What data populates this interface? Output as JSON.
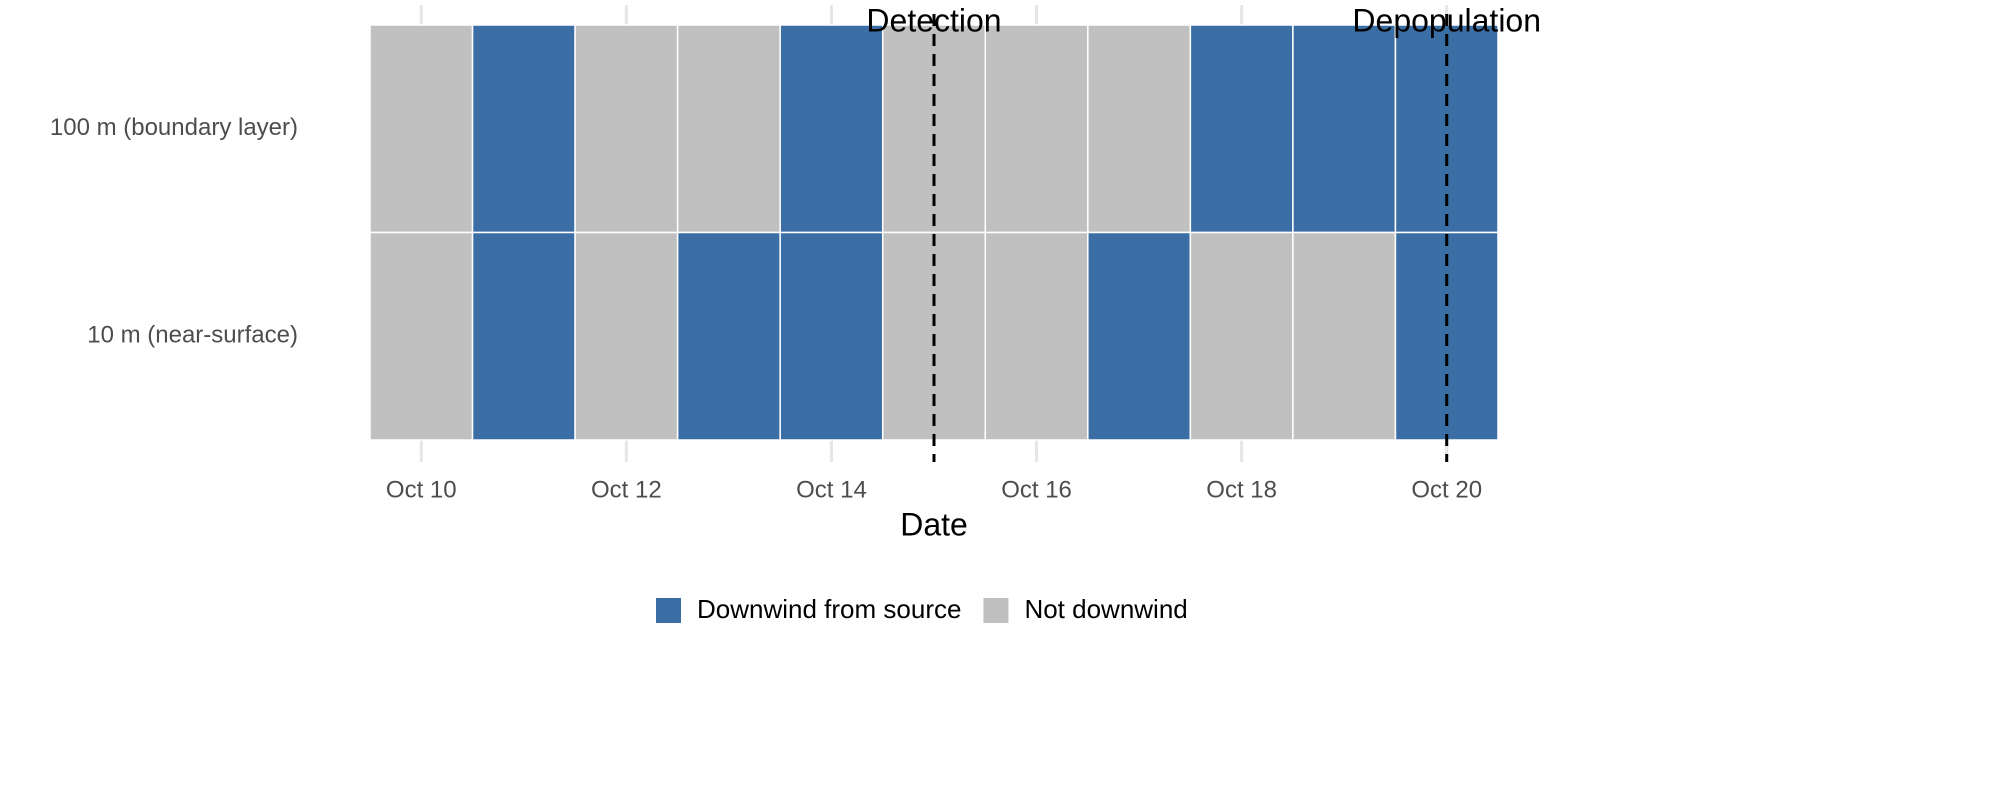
{
  "chart_data": {
    "type": "tile",
    "x_label": "Date",
    "x": [
      10,
      11,
      12,
      13,
      14,
      15,
      16,
      17,
      18,
      19,
      20
    ],
    "xlim": [
      9.5,
      20.5
    ],
    "xticks": [
      {
        "value": 10,
        "label": "Oct 10"
      },
      {
        "value": 12,
        "label": "Oct 12"
      },
      {
        "value": 14,
        "label": "Oct 14"
      },
      {
        "value": 16,
        "label": "Oct 16"
      },
      {
        "value": 18,
        "label": "Oct 18"
      },
      {
        "value": 20,
        "label": "Oct 20"
      }
    ],
    "levels": [
      {
        "name": "Downwind from source",
        "color": "#3a6ea5"
      },
      {
        "name": "Not downwind",
        "color": "#c0c0c0"
      }
    ],
    "series": [
      {
        "name": "100 m (boundary layer)",
        "values": [
          "Not downwind",
          "Downwind from source",
          "Not downwind",
          "Not downwind",
          "Downwind from source",
          "Not downwind",
          "Not downwind",
          "Not downwind",
          "Downwind from source",
          "Downwind from source",
          "Downwind from source"
        ]
      },
      {
        "name": "10 m (near-surface)",
        "values": [
          "Not downwind",
          "Downwind from source",
          "Not downwind",
          "Downwind from source",
          "Downwind from source",
          "Not downwind",
          "Not downwind",
          "Downwind from source",
          "Not downwind",
          "Not downwind",
          "Downwind from source"
        ]
      }
    ],
    "annotations": [
      {
        "label": "Detection",
        "x": 15
      },
      {
        "label": "Depopulation",
        "x": 20
      }
    ],
    "grid": true,
    "legend": "bottom"
  }
}
